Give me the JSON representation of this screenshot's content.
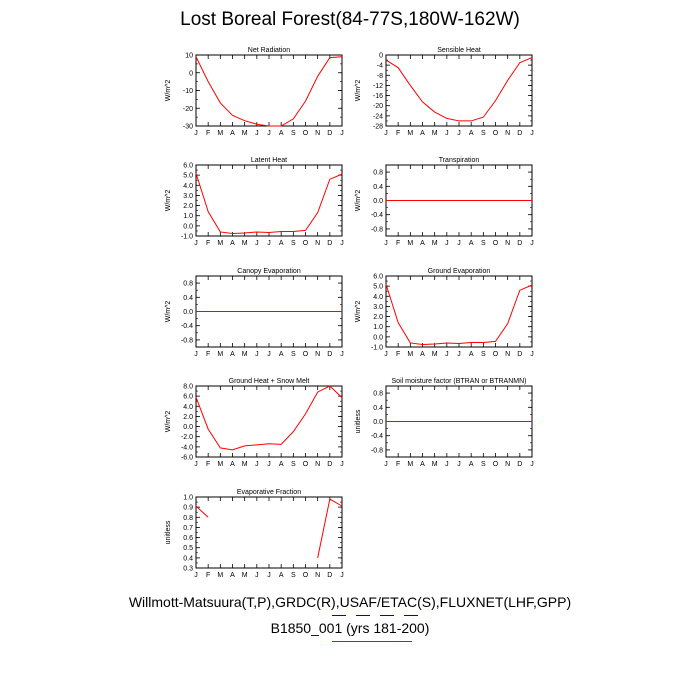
{
  "title": "Lost Boreal Forest(84-77S,180W-162W)",
  "footer": {
    "line1": "Willmott-Matsuura(T,P),GRDC(R),USAF/ETAC(S),FLUXNET(LHF,GPP)",
    "line2": "B1850_001 (yrs 181-200)"
  },
  "colors": {
    "series": "#ff0000",
    "axis": "#000000",
    "underline_blue": "#0000cc",
    "underline_red": "#ff0000"
  },
  "month_labels": [
    "J",
    "F",
    "M",
    "A",
    "M",
    "J",
    "J",
    "A",
    "S",
    "O",
    "N",
    "D",
    "J"
  ],
  "chart_data": [
    {
      "type": "line",
      "title": "Net Radiation",
      "ylabel": "W/m^2",
      "yticks": [
        "10",
        "0",
        "-10",
        "-20",
        "-30"
      ],
      "ylim": [
        -30,
        10
      ],
      "x": [
        0,
        1,
        2,
        3,
        4,
        5,
        6,
        7,
        8,
        9,
        10,
        11,
        12
      ],
      "values": [
        9,
        -5,
        -17,
        -24,
        -27,
        -29,
        -30,
        -30,
        -26,
        -16,
        -2,
        8.5,
        9
      ]
    },
    {
      "type": "line",
      "title": "Sensible Heat",
      "ylabel": "W/m^2",
      "yticks": [
        "0",
        "-4",
        "-8",
        "-12",
        "-16",
        "-20",
        "-24",
        "-28"
      ],
      "ylim": [
        -28,
        0
      ],
      "x": [
        0,
        1,
        2,
        3,
        4,
        5,
        6,
        7,
        8,
        9,
        10,
        11,
        12
      ],
      "values": [
        -2,
        -5,
        -12,
        -18.5,
        -22.5,
        -25,
        -26,
        -26,
        -24.5,
        -18,
        -10,
        -3,
        -1
      ]
    },
    {
      "type": "line",
      "title": "Latent Heat",
      "ylabel": "W/m^2",
      "yticks": [
        "6.0",
        "5.0",
        "4.0",
        "3.0",
        "2.0",
        "1.0",
        "0.0",
        "-1.0"
      ],
      "ylim": [
        -1,
        6
      ],
      "x": [
        0,
        1,
        2,
        3,
        4,
        5,
        6,
        7,
        8,
        9,
        10,
        11,
        12
      ],
      "values": [
        5.2,
        1.4,
        -0.6,
        -0.75,
        -0.7,
        -0.6,
        -0.65,
        -0.55,
        -0.55,
        -0.45,
        1.3,
        4.6,
        5.1
      ]
    },
    {
      "type": "line",
      "title": "Transpiration",
      "ylabel": "W/m^2",
      "yticks": [
        "0.8",
        "0.4",
        "0.0",
        "-0.4",
        "-0.8"
      ],
      "ylim": [
        -1,
        1
      ],
      "x": [
        0,
        1,
        2,
        3,
        4,
        5,
        6,
        7,
        8,
        9,
        10,
        11,
        12
      ],
      "values": [
        0,
        0,
        0,
        0,
        0,
        0,
        0,
        0,
        0,
        0,
        0,
        0,
        0
      ]
    },
    {
      "type": "line",
      "title": "Canopy Evaporation",
      "ylabel": "W/m^2",
      "yticks": [
        "0.8",
        "0.4",
        "0.0",
        "-0.4",
        "-0.8"
      ],
      "ylim": [
        -1,
        1
      ],
      "x": [
        0,
        1,
        2,
        3,
        4,
        5,
        6,
        7,
        8,
        9,
        10,
        11,
        12
      ],
      "values": [
        0,
        0,
        0,
        0,
        0,
        0,
        0,
        0,
        0,
        0,
        0,
        0,
        0
      ]
    },
    {
      "type": "line",
      "title": "Ground Evaporation",
      "ylabel": "W/m^2",
      "yticks": [
        "6.0",
        "5.0",
        "4.0",
        "3.0",
        "2.0",
        "1.0",
        "0.0",
        "-1.0"
      ],
      "ylim": [
        -1,
        6
      ],
      "x": [
        0,
        1,
        2,
        3,
        4,
        5,
        6,
        7,
        8,
        9,
        10,
        11,
        12
      ],
      "values": [
        5.2,
        1.4,
        -0.6,
        -0.75,
        -0.7,
        -0.6,
        -0.65,
        -0.55,
        -0.55,
        -0.45,
        1.3,
        4.6,
        5.1
      ]
    },
    {
      "type": "line",
      "title": "Ground Heat + Snow Melt",
      "ylabel": "W/m^2",
      "yticks": [
        "8.0",
        "6.0",
        "4.0",
        "2.0",
        "0.0",
        "-2.0",
        "-4.0",
        "-6.0"
      ],
      "ylim": [
        -6,
        8
      ],
      "x": [
        0,
        1,
        2,
        3,
        4,
        5,
        6,
        7,
        8,
        9,
        10,
        11,
        12
      ],
      "values": [
        5.8,
        -0.5,
        -4.2,
        -4.6,
        -3.8,
        -3.6,
        -3.4,
        -3.5,
        -1.0,
        2.5,
        6.8,
        8.0,
        5.7
      ]
    },
    {
      "type": "line",
      "title": "Soil moisture factor (BTRAN or BTRANMN)",
      "ylabel": "unitless",
      "yticks": [
        "0.8",
        "0.4",
        "0.0",
        "-0.4",
        "-0.8"
      ],
      "ylim": [
        -1,
        1
      ],
      "x": [
        0,
        1,
        2,
        3,
        4,
        5,
        6,
        7,
        8,
        9,
        10,
        11,
        12
      ],
      "values": [
        0,
        0,
        0,
        0,
        0,
        0,
        0,
        0,
        0,
        0,
        0,
        0,
        0
      ]
    },
    {
      "type": "line",
      "title": "Evaporative Fraction",
      "ylabel": "unitless",
      "yticks": [
        "1.0",
        "0.9",
        "0.8",
        "0.7",
        "0.6",
        "0.5",
        "0.4",
        "0.3"
      ],
      "ylim": [
        0.3,
        1.0
      ],
      "x": [
        0,
        1,
        2,
        3,
        4,
        5,
        6,
        7,
        8,
        9,
        10,
        11,
        12
      ],
      "values": [
        0.91,
        0.8,
        null,
        null,
        null,
        null,
        null,
        null,
        null,
        null,
        0.4,
        0.98,
        0.91
      ]
    }
  ]
}
